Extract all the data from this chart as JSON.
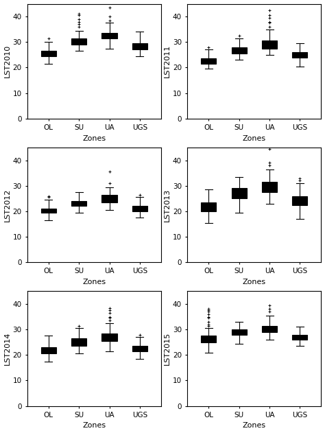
{
  "categories": [
    "OL",
    "SU",
    "UA",
    "UGS"
  ],
  "xlabel": "Zones",
  "ylim": [
    0,
    45
  ],
  "yticks": [
    0,
    10,
    20,
    30,
    40
  ],
  "background_color": "#ffffff",
  "box_facecolor": "#d3d3d3",
  "median_color": "#000000",
  "line_color": "#000000",
  "plots": [
    {
      "year": "LST2010",
      "OL": {
        "q1": 24.5,
        "median": 25.5,
        "q3": 26.5,
        "whislo": 21.5,
        "whishi": 30.0,
        "fliers": [
          31.5
        ]
      },
      "SU": {
        "q1": 29.0,
        "median": 30.5,
        "q3": 31.5,
        "whislo": 26.5,
        "whishi": 34.5,
        "fliers": [
          36.0,
          37.0,
          38.0,
          39.0,
          40.5,
          41.0
        ]
      },
      "UA": {
        "q1": 31.5,
        "median": 32.5,
        "q3": 33.5,
        "whislo": 27.5,
        "whishi": 37.5,
        "fliers": [
          38.5,
          40.0,
          43.5
        ]
      },
      "UGS": {
        "q1": 27.0,
        "median": 28.5,
        "q3": 29.5,
        "whislo": 24.5,
        "whishi": 34.0,
        "fliers": []
      }
    },
    {
      "year": "LST2011",
      "OL": {
        "q1": 21.5,
        "median": 22.5,
        "q3": 23.5,
        "whislo": 19.5,
        "whishi": 27.0,
        "fliers": [
          28.0
        ]
      },
      "SU": {
        "q1": 25.5,
        "median": 27.0,
        "q3": 28.0,
        "whislo": 23.0,
        "whishi": 31.5,
        "fliers": [
          32.5
        ]
      },
      "UA": {
        "q1": 27.5,
        "median": 29.0,
        "q3": 30.5,
        "whislo": 25.0,
        "whishi": 35.0,
        "fliers": [
          36.0,
          37.5,
          38.0,
          39.5,
          40.5,
          42.5
        ]
      },
      "UGS": {
        "q1": 24.0,
        "median": 25.0,
        "q3": 26.0,
        "whislo": 20.5,
        "whishi": 29.5,
        "fliers": []
      }
    },
    {
      "year": "LST2012",
      "OL": {
        "q1": 19.5,
        "median": 20.0,
        "q3": 21.0,
        "whislo": 16.5,
        "whishi": 24.5,
        "fliers": [
          25.5,
          26.0
        ]
      },
      "SU": {
        "q1": 22.0,
        "median": 23.0,
        "q3": 24.0,
        "whislo": 19.5,
        "whishi": 27.5,
        "fliers": []
      },
      "UA": {
        "q1": 23.5,
        "median": 25.0,
        "q3": 26.5,
        "whislo": 20.5,
        "whishi": 29.5,
        "fliers": [
          31.0,
          35.5
        ]
      },
      "UGS": {
        "q1": 20.0,
        "median": 21.0,
        "q3": 22.0,
        "whislo": 17.5,
        "whishi": 25.5,
        "fliers": [
          26.5
        ]
      }
    },
    {
      "year": "LST2013",
      "OL": {
        "q1": 20.0,
        "median": 22.0,
        "q3": 23.5,
        "whislo": 15.5,
        "whishi": 28.5,
        "fliers": []
      },
      "SU": {
        "q1": 25.0,
        "median": 27.0,
        "q3": 29.0,
        "whislo": 19.5,
        "whishi": 33.5,
        "fliers": []
      },
      "UA": {
        "q1": 27.5,
        "median": 29.5,
        "q3": 31.5,
        "whislo": 23.0,
        "whishi": 36.5,
        "fliers": [
          38.0,
          39.0,
          44.5
        ]
      },
      "UGS": {
        "q1": 22.5,
        "median": 24.5,
        "q3": 26.0,
        "whislo": 17.0,
        "whishi": 31.0,
        "fliers": [
          32.0,
          33.0
        ]
      }
    },
    {
      "year": "LST2014",
      "OL": {
        "q1": 20.5,
        "median": 21.5,
        "q3": 23.0,
        "whislo": 17.5,
        "whishi": 27.5,
        "fliers": []
      },
      "SU": {
        "q1": 23.5,
        "median": 25.0,
        "q3": 26.5,
        "whislo": 20.5,
        "whishi": 30.5,
        "fliers": [
          31.5
        ]
      },
      "UA": {
        "q1": 25.5,
        "median": 27.0,
        "q3": 28.5,
        "whislo": 21.5,
        "whishi": 32.5,
        "fliers": [
          33.5,
          34.5,
          35.0,
          36.5,
          37.5,
          38.5
        ]
      },
      "UGS": {
        "q1": 21.5,
        "median": 22.5,
        "q3": 23.5,
        "whislo": 18.5,
        "whishi": 27.0,
        "fliers": [
          28.0
        ]
      }
    },
    {
      "year": "LST2015",
      "OL": {
        "q1": 25.0,
        "median": 26.5,
        "q3": 27.5,
        "whislo": 21.0,
        "whishi": 30.5,
        "fliers": [
          31.5,
          32.0,
          33.0,
          34.5,
          35.0,
          36.0,
          37.0,
          37.5,
          38.0
        ]
      },
      "SU": {
        "q1": 28.0,
        "median": 29.0,
        "q3": 30.0,
        "whislo": 24.5,
        "whishi": 33.0,
        "fliers": []
      },
      "UA": {
        "q1": 29.0,
        "median": 30.0,
        "q3": 31.5,
        "whislo": 26.0,
        "whishi": 35.5,
        "fliers": [
          37.0,
          38.0,
          39.5
        ]
      },
      "UGS": {
        "q1": 26.0,
        "median": 27.0,
        "q3": 28.0,
        "whislo": 23.5,
        "whishi": 31.0,
        "fliers": []
      }
    }
  ]
}
